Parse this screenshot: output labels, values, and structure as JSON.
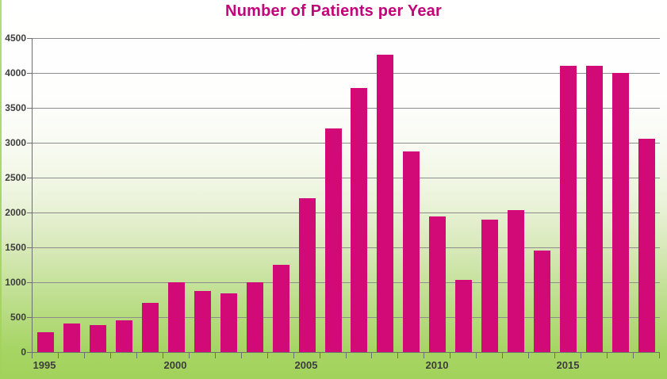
{
  "title": "Number of Patients per Year",
  "colors": {
    "bar": "#d20a78",
    "title": "#c2047a",
    "axis_text": "#3d3d3d",
    "gridline": "#8c8c8c",
    "axis_line": "#6e6e6e",
    "background_top": "#ffffff",
    "background_bottom": "#a2d25b"
  },
  "chart_data": {
    "type": "bar",
    "title": "Number of Patients per Year",
    "categories": [
      "1995",
      "1996",
      "1997",
      "1998",
      "1999",
      "2000",
      "2001",
      "2002",
      "2003",
      "2004",
      "2005",
      "2006",
      "2007",
      "2008",
      "2009",
      "2010",
      "2011",
      "2012",
      "2013",
      "2014",
      "2015",
      "2016",
      "2017",
      "2018"
    ],
    "values": [
      285,
      410,
      385,
      450,
      710,
      1000,
      870,
      840,
      1000,
      1255,
      2200,
      3200,
      3780,
      4265,
      2870,
      1940,
      1030,
      1900,
      2030,
      1460,
      4100,
      4100,
      4000,
      3060
    ],
    "xlabel": "",
    "ylabel": "",
    "ylim": [
      0,
      4500
    ],
    "y_tick_interval": 500,
    "y_tick_labels": [
      "4500",
      "4000",
      "3500",
      "3000",
      "2500",
      "2000",
      "1500",
      "1000",
      "500",
      "0"
    ],
    "x_tick_labels": [
      "1995",
      "2000",
      "2005",
      "2010",
      "2015"
    ],
    "x_tick_label_indices": [
      0,
      5,
      10,
      15,
      20
    ],
    "grid": true,
    "legend": false,
    "bar_gap_ratio": 0.36
  }
}
